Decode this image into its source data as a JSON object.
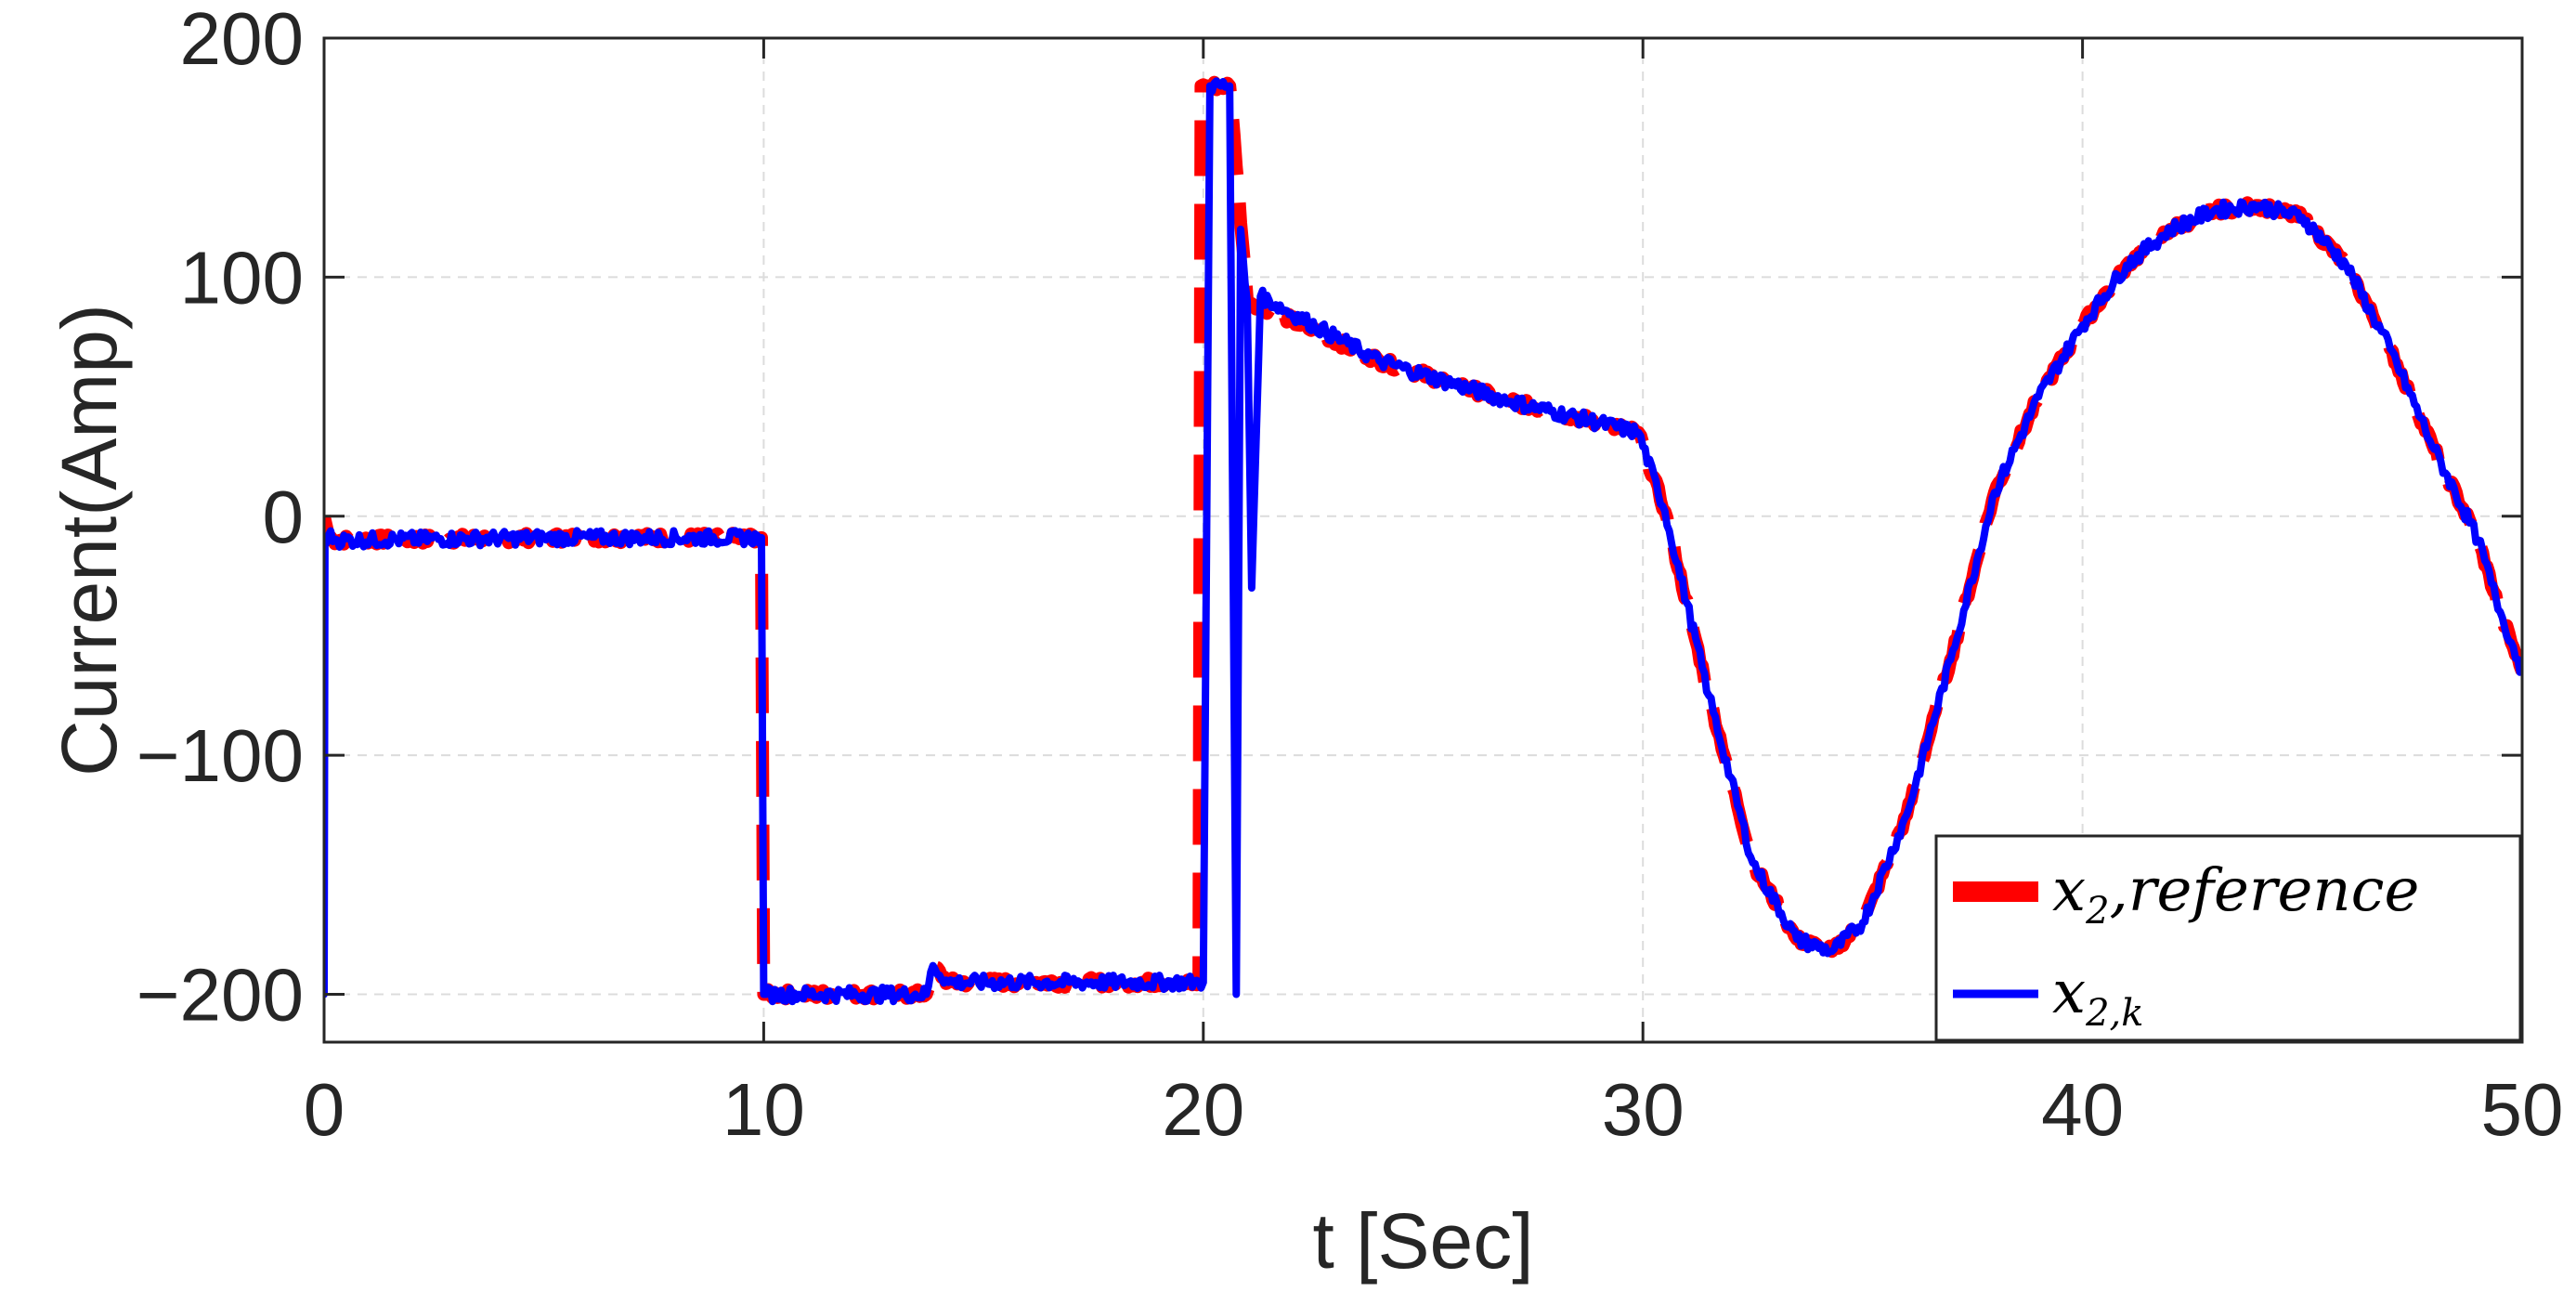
{
  "chart_data": {
    "type": "line",
    "title": "",
    "xlabel": "t [Sec]",
    "ylabel": "Current(Amp)",
    "xlim": [
      0,
      50
    ],
    "ylim": [
      -220,
      200
    ],
    "xticks": [
      0,
      10,
      20,
      30,
      40,
      50
    ],
    "xtick_labels": [
      "0",
      "10",
      "20",
      "30",
      "40",
      "50"
    ],
    "yticks": [
      -200,
      -100,
      0,
      100,
      200
    ],
    "ytick_labels": [
      "−200",
      "−100",
      "0",
      "100",
      "200"
    ],
    "grid": true,
    "legend_position": "bottom-right",
    "series": [
      {
        "name": "x2,reference",
        "legend_main": "x",
        "legend_sub": "2",
        "legend_rest": ",reference",
        "color": "#ff0000",
        "style": "dashed",
        "x": [
          0,
          0.1,
          0.2,
          5,
          9.95,
          10.0,
          10.05,
          13.7,
          13.85,
          14.2,
          19.9,
          19.95,
          20.05,
          20.1,
          20.5,
          20.6,
          20.65,
          21.0,
          21.3,
          24,
          27,
          29.9,
          30.5,
          31.5,
          32.5,
          33.5,
          34.3,
          35.0,
          36.0,
          37.0,
          38.0,
          39.0,
          40.0,
          41.0,
          42.0,
          43.0,
          44.0,
          45.0,
          46.0,
          47.0,
          48.0,
          49.0,
          49.5,
          50.0
        ],
        "y": [
          0,
          -8,
          -10,
          -9,
          -9,
          -200,
          -200,
          -200,
          -188,
          -195,
          -195,
          180,
          180,
          180,
          180,
          180,
          170,
          90,
          88,
          65,
          48,
          35,
          2,
          -75,
          -145,
          -177,
          -182,
          -170,
          -125,
          -60,
          10,
          50,
          80,
          105,
          120,
          128,
          130,
          125,
          105,
          70,
          28,
          -10,
          -40,
          -65
        ]
      },
      {
        "name": "x2,k",
        "legend_main": "x",
        "legend_sub": "2,k",
        "legend_rest": "",
        "color": "#0000ff",
        "style": "solid",
        "x": [
          0,
          0.02,
          0.1,
          0.3,
          5,
          9.95,
          10.0,
          10.05,
          13.7,
          13.85,
          14.2,
          19.9,
          20.0,
          20.15,
          20.6,
          20.75,
          20.85,
          21.0,
          21.1,
          21.3,
          24,
          27,
          29.9,
          30.5,
          31.5,
          32.5,
          33.5,
          34.3,
          35.0,
          36.0,
          37.0,
          38.0,
          39.0,
          40.0,
          41.0,
          42.0,
          43.0,
          44.0,
          45.0,
          46.0,
          47.0,
          48.0,
          49.0,
          49.5,
          50.0
        ],
        "y": [
          -200,
          -10,
          -8,
          -10,
          -9,
          -9,
          -200,
          -200,
          -200,
          -188,
          -195,
          -195,
          -195,
          180,
          180,
          -200,
          120,
          90,
          -30,
          92,
          65,
          48,
          35,
          2,
          -75,
          -145,
          -177,
          -182,
          -170,
          -125,
          -60,
          10,
          50,
          80,
          105,
          120,
          128,
          130,
          125,
          105,
          70,
          28,
          -10,
          -40,
          -65
        ]
      }
    ]
  }
}
